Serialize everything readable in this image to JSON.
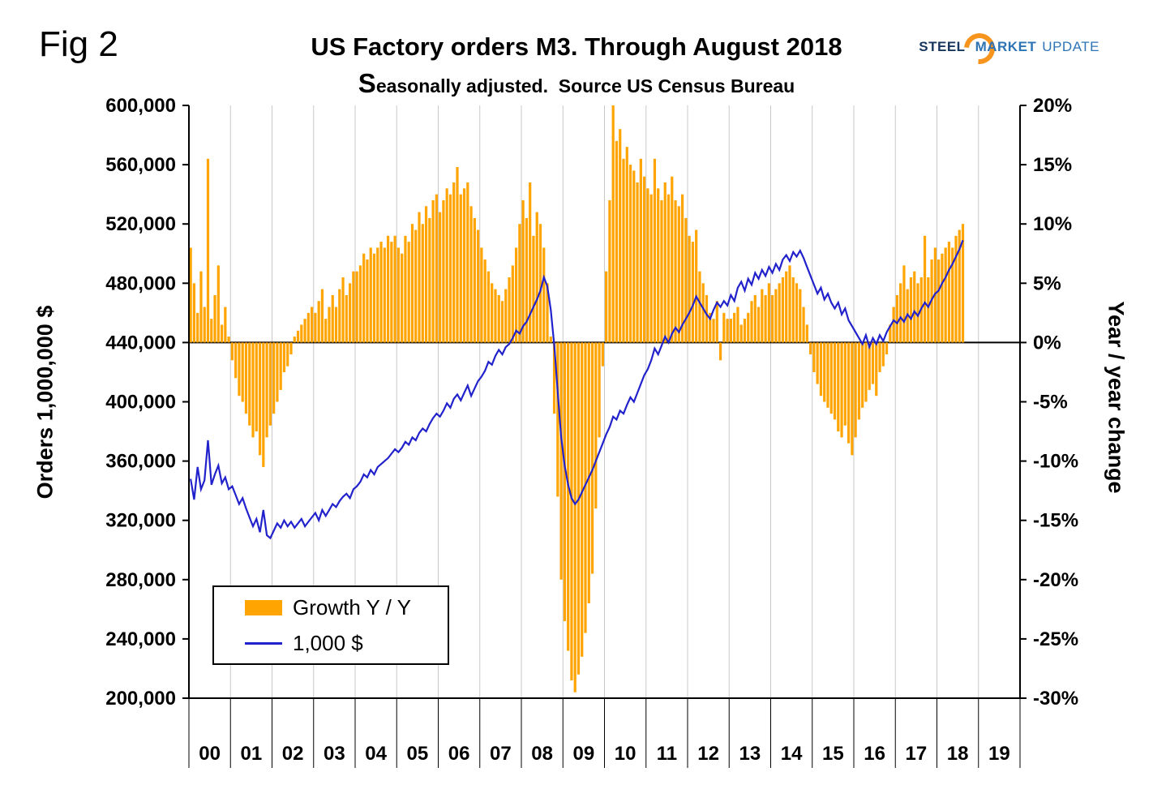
{
  "figure_label": "Fig 2",
  "header": {
    "title": "US Factory orders M3. Through August 2018",
    "subtitle_lead": "S",
    "subtitle_rest": "easonally adjusted.  Source US Census Bureau"
  },
  "logo": {
    "steel": "STEEL",
    "market": "MARKET",
    "update": "UPDATE"
  },
  "colors": {
    "bar": "#FFA400",
    "line": "#2222CC",
    "gridline": "#C9C9C9",
    "axis": "#000000",
    "logo_steel": "#17365D",
    "logo_blue": "#2E74B5",
    "logo_orange": "#F7941D"
  },
  "legend": [
    {
      "label": "Growth Y / Y",
      "type": "bar"
    },
    {
      "label": "1,000 $",
      "type": "line"
    }
  ],
  "axes_display": {
    "left_axis_title": "Orders 1,000,000 $",
    "right_axis_title": "Year / year change",
    "left_ticks": [
      "600,000",
      "560,000",
      "520,000",
      "480,000",
      "440,000",
      "400,000",
      "360,000",
      "320,000",
      "280,000",
      "240,000",
      "200,000"
    ],
    "right_ticks": [
      "20%",
      "15%",
      "10%",
      "5%",
      "0%",
      "-5%",
      "-10%",
      "-15%",
      "-20%",
      "-25%",
      "-30%"
    ],
    "x_ticks": [
      "00",
      "01",
      "02",
      "03",
      "04",
      "05",
      "06",
      "07",
      "08",
      "09",
      "10",
      "11",
      "12",
      "13",
      "14",
      "15",
      "16",
      "17",
      "18",
      "19"
    ]
  },
  "chart_data": {
    "type": "combo",
    "title": "US Factory orders M3. Through August 2018",
    "subtitle": "Seasonally adjusted. Source US Census Bureau",
    "x_unit": "month",
    "x_start": "2000-01",
    "x_end": "2018-08",
    "grid": "vertical-yearly",
    "legend_position": "inside-lower-left",
    "left_axis": {
      "label": "Orders 1,000,000 $",
      "range": [
        200000,
        600000
      ],
      "tick_step": 40000
    },
    "right_axis": {
      "label": "Year / year change",
      "range": [
        -30,
        20
      ],
      "tick_step": 5,
      "unit": "%"
    },
    "series": [
      {
        "name": "Growth Y / Y",
        "type": "bar",
        "axis": "right",
        "unit": "%",
        "values": [
          8,
          5,
          2.5,
          6,
          3,
          15.5,
          2,
          4,
          6.5,
          1.5,
          3,
          0.5,
          -1.5,
          -3,
          -4.5,
          -5,
          -6,
          -7,
          -8,
          -7.5,
          -9.5,
          -10.5,
          -8,
          -7,
          -6,
          -5,
          -4,
          -2.5,
          -2,
          -1,
          0.5,
          1,
          1.5,
          2,
          2.5,
          3,
          2.5,
          3.5,
          4.5,
          2,
          3,
          4,
          3,
          4.5,
          5.5,
          4,
          5,
          6,
          6,
          6.5,
          7.5,
          7,
          8,
          7.5,
          8,
          8.5,
          8,
          9,
          8.5,
          9,
          8,
          7.5,
          9,
          8.5,
          10,
          9.5,
          11,
          10,
          11.5,
          10.5,
          12,
          12.5,
          11,
          12,
          13,
          12.5,
          13.5,
          14.8,
          12.5,
          13,
          13.5,
          11.5,
          10.5,
          9.5,
          8,
          7,
          6,
          5,
          4.5,
          4,
          3.5,
          4.5,
          5.5,
          6.5,
          8,
          10,
          12,
          10.5,
          13.5,
          9,
          11,
          10,
          8,
          5,
          0.5,
          -6,
          -13,
          -20,
          -23.5,
          -26,
          -28.5,
          -29.5,
          -28,
          -26.5,
          -24.5,
          -22,
          -19.5,
          -14,
          -8,
          -2,
          6,
          12,
          20.3,
          17,
          18,
          15.5,
          16.5,
          15,
          14.5,
          13.5,
          15.5,
          14,
          13,
          12.5,
          15.5,
          13,
          12,
          13.5,
          12.5,
          14,
          12,
          11.5,
          12.5,
          10.5,
          9,
          8.5,
          9.5,
          6,
          5,
          4,
          2.5,
          2,
          3.5,
          -1.5,
          2.5,
          2,
          2,
          2.5,
          3,
          1.5,
          2,
          2.5,
          3.5,
          4,
          3,
          4.5,
          4,
          5,
          4,
          4.5,
          5,
          5.5,
          6,
          6.5,
          5.5,
          5,
          4.5,
          3,
          1.5,
          -1,
          -2.5,
          -3.5,
          -4.5,
          -5,
          -5.5,
          -6,
          -6.5,
          -7.5,
          -8,
          -7,
          -8.5,
          -9.5,
          -8,
          -6.5,
          -5.5,
          -5,
          -4,
          -3.5,
          -4.5,
          -2.5,
          -2,
          -1,
          1.5,
          3,
          4,
          5,
          6.5,
          4.5,
          5.5,
          6,
          5,
          5.5,
          9,
          5.5,
          7,
          8,
          7,
          7.5,
          8,
          8.5,
          8,
          9,
          9.5,
          10
        ]
      },
      {
        "name": "1,000 $",
        "type": "line",
        "axis": "left",
        "value_scale": 1000,
        "values": [
          348,
          334,
          356,
          341,
          347,
          374,
          344,
          351,
          357,
          345,
          349,
          341,
          343,
          337,
          331,
          335,
          328,
          322,
          316,
          321,
          312,
          327,
          310,
          308,
          313,
          318,
          315,
          320,
          316,
          319,
          315,
          318,
          321,
          316,
          319,
          322,
          325,
          320,
          327,
          323,
          327,
          331,
          329,
          333,
          336,
          338,
          335,
          341,
          343,
          346,
          351,
          349,
          354,
          351,
          356,
          358,
          360,
          362,
          365,
          368,
          366,
          369,
          373,
          371,
          376,
          374,
          379,
          382,
          380,
          385,
          389,
          392,
          390,
          394,
          399,
          396,
          402,
          405,
          401,
          406,
          411,
          404,
          409,
          414,
          417,
          421,
          427,
          425,
          431,
          435,
          432,
          437,
          439,
          443,
          448,
          446,
          451,
          454,
          459,
          464,
          469,
          475,
          484,
          478,
          462,
          438,
          407,
          376,
          357,
          344,
          335,
          331,
          334,
          339,
          344,
          349,
          354,
          360,
          366,
          372,
          378,
          383,
          390,
          388,
          394,
          392,
          398,
          403,
          400,
          406,
          412,
          418,
          422,
          428,
          436,
          432,
          438,
          444,
          440,
          446,
          450,
          447,
          452,
          456,
          460,
          465,
          471,
          467,
          463,
          459,
          456,
          462,
          467,
          464,
          468,
          465,
          472,
          468,
          477,
          481,
          475,
          483,
          479,
          487,
          483,
          489,
          485,
          491,
          487,
          493,
          489,
          496,
          499,
          495,
          501,
          498,
          502,
          497,
          491,
          485,
          479,
          473,
          477,
          469,
          473,
          467,
          463,
          467,
          459,
          463,
          455,
          451,
          447,
          443,
          439,
          445,
          437,
          443,
          439,
          445,
          441,
          447,
          451,
          455,
          453,
          457,
          454,
          459,
          456,
          461,
          458,
          463,
          467,
          464,
          469,
          473,
          475,
          480,
          484,
          489,
          493,
          498,
          503,
          509
        ]
      }
    ]
  }
}
